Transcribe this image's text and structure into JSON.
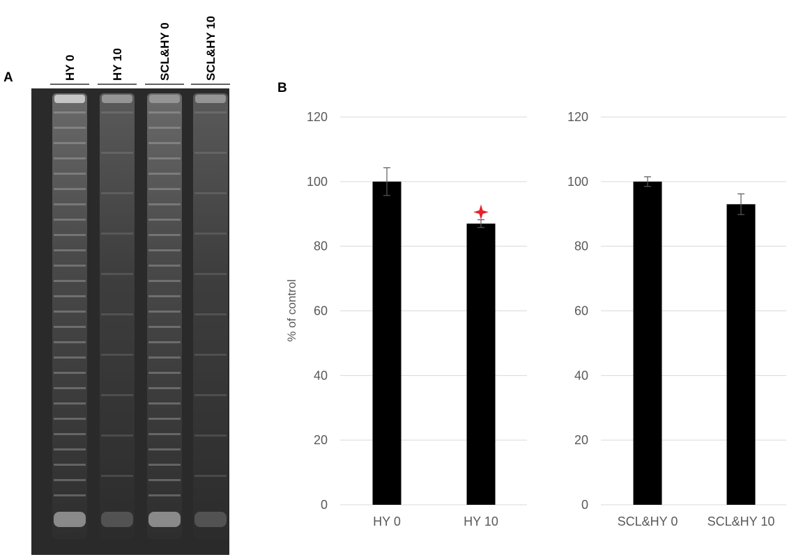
{
  "panels": {
    "a_label": "A",
    "b_label": "B"
  },
  "gel": {
    "lanes": [
      "HY 0",
      "HY 10",
      "SCL&HY 0",
      "SCL&HY 10"
    ]
  },
  "colors": {
    "bar": "#000000",
    "significance_marker": "#e8202a",
    "gridline": "#d9d9d9",
    "tick_text": "#595959"
  },
  "chart_data": [
    {
      "type": "bar",
      "categories": [
        "HY 0",
        "HY 10"
      ],
      "values": [
        100,
        87
      ],
      "errors": [
        4.3,
        1.2
      ],
      "significant": [
        false,
        true
      ],
      "ylabel": "% of control",
      "ylim": [
        0,
        120
      ],
      "yticks": [
        0,
        20,
        40,
        60,
        80,
        100,
        120
      ],
      "grid": true
    },
    {
      "type": "bar",
      "categories": [
        "SCL&HY 0",
        "SCL&HY 10"
      ],
      "values": [
        100,
        93
      ],
      "errors": [
        1.5,
        3.2
      ],
      "significant": [
        false,
        false
      ],
      "ylabel": "",
      "ylim": [
        0,
        120
      ],
      "yticks": [
        0,
        20,
        40,
        60,
        80,
        100,
        120
      ],
      "grid": true
    }
  ]
}
